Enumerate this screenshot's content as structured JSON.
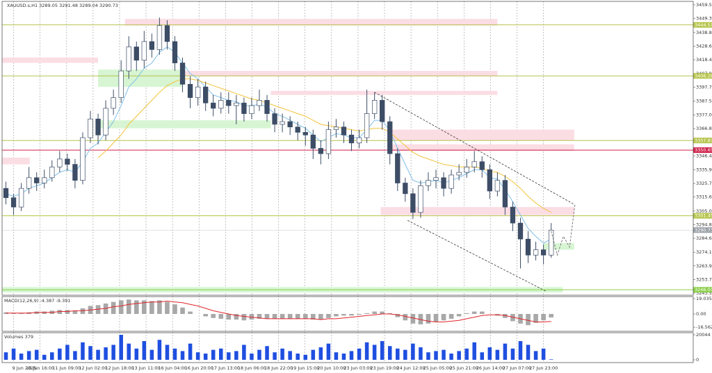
{
  "chart_data": {
    "type": "candlestick",
    "title": "XAUUSD.s,H1  3289.05 3291.48 3289.04 3290.73",
    "xlim": [
      0,
      90
    ],
    "xticks": [
      {
        "value": 1.5,
        "label": "9 Jun 2025"
      },
      {
        "value": 4.95,
        "label": "10 Jun 16:00"
      },
      {
        "value": 8.4,
        "label": "11 Jun 09:00"
      },
      {
        "value": 11.85,
        "label": "12 Jun 02:00"
      },
      {
        "value": 15.3,
        "label": "12 Jun 18:00"
      },
      {
        "value": 18.75,
        "label": "13 Jun 11:00"
      },
      {
        "value": 22.2,
        "label": "16 Jun 04:00"
      },
      {
        "value": 25.65,
        "label": "16 Jun 20:00"
      },
      {
        "value": 29.1,
        "label": "17 Jun 13:00"
      },
      {
        "value": 32.55,
        "label": "18 Jun 06:00"
      },
      {
        "value": 36,
        "label": "18 Jun 22:00"
      },
      {
        "value": 39.45,
        "label": "19 Jun 15:00"
      },
      {
        "value": 42.9,
        "label": "20 Jun 10:00"
      },
      {
        "value": 46.35,
        "label": "23 Jun 03:00"
      },
      {
        "value": 49.8,
        "label": "23 Jun 19:00"
      },
      {
        "value": 53.25,
        "label": "24 Jun 12:00"
      },
      {
        "value": 56.7,
        "label": "25 Jun 05:00"
      },
      {
        "value": 60.15,
        "label": "25 Jun 21:00"
      },
      {
        "value": 63.6,
        "label": "26 Jun 14:00"
      },
      {
        "value": 67.05,
        "label": "27 Jun 07:00"
      },
      {
        "value": 70.5,
        "label": "27 Jun 23:00"
      }
    ],
    "ylim": [
      3243.5,
      3459.5
    ],
    "yticks": [
      {
        "value": 3459.5,
        "label": "3459.50"
      },
      {
        "value": 3449.3,
        "label": "3449.30"
      },
      {
        "value": 3438.8,
        "label": "3438.80"
      },
      {
        "value": 3428.6,
        "label": "3428.60"
      },
      {
        "value": 3418.4,
        "label": "3418.40"
      },
      {
        "value": 3407.9,
        "label": "3407.90"
      },
      {
        "value": 3397.7,
        "label": "3397.70"
      },
      {
        "value": 3387.5,
        "label": "3387.50"
      },
      {
        "value": 3377,
        "label": "3377.00"
      },
      {
        "value": 3366.8,
        "label": "3366.80"
      },
      {
        "value": 3346.4,
        "label": "3346.40"
      },
      {
        "value": 3335.9,
        "label": "3335.90"
      },
      {
        "value": 3325.7,
        "label": "3325.70"
      },
      {
        "value": 3315.6,
        "label": "3315.60"
      },
      {
        "value": 3305,
        "label": "3305.00"
      },
      {
        "value": 3294.8,
        "label": "3294.80"
      },
      {
        "value": 3284.6,
        "label": "3284.60"
      },
      {
        "value": 3274.1,
        "label": "3274.10"
      },
      {
        "value": 3263.9,
        "label": "3263.90"
      },
      {
        "value": 3253.7,
        "label": "3253.70"
      },
      {
        "value": 3243.5,
        "label": "3243.50"
      }
    ],
    "grid": true,
    "up_color": "#ffffff",
    "down_color": "#3d4d66",
    "wick_color": "#3d4d66",
    "open": [
      3322,
      3315,
      3308,
      3322,
      3330,
      3326,
      3330,
      3338,
      3344,
      3340,
      3328,
      3360,
      3374,
      3362,
      3382,
      3390,
      3410,
      3428,
      3418,
      3432,
      3426,
      3444,
      3432,
      3416,
      3400,
      3390,
      3398,
      3386,
      3382,
      3388,
      3384,
      3386,
      3378,
      3384,
      3388,
      3378,
      3370,
      3372,
      3368,
      3364,
      3362,
      3352,
      3348,
      3366,
      3368,
      3362,
      3356,
      3360,
      3378,
      3388,
      3372,
      3348,
      3326,
      3318,
      3304,
      3324,
      3328,
      3330,
      3322,
      3332,
      3334,
      3338,
      3342,
      3336,
      3320,
      3328,
      3308,
      3296,
      3284,
      3272,
      3276,
      3272
    ],
    "high": [
      3327,
      3318,
      3326,
      3338,
      3334,
      3336,
      3343,
      3350,
      3348,
      3344,
      3364,
      3380,
      3378,
      3388,
      3396,
      3418,
      3436,
      3432,
      3440,
      3438,
      3450,
      3448,
      3436,
      3420,
      3406,
      3404,
      3402,
      3392,
      3394,
      3394,
      3392,
      3390,
      3390,
      3396,
      3392,
      3382,
      3378,
      3376,
      3372,
      3368,
      3366,
      3358,
      3372,
      3374,
      3372,
      3366,
      3366,
      3396,
      3394,
      3392,
      3376,
      3352,
      3330,
      3322,
      3328,
      3334,
      3336,
      3334,
      3336,
      3340,
      3344,
      3350,
      3346,
      3340,
      3334,
      3332,
      3312,
      3300,
      3290,
      3282,
      3280,
      3296
    ],
    "low": [
      3310,
      3302,
      3305,
      3318,
      3320,
      3322,
      3327,
      3334,
      3335,
      3322,
      3325,
      3356,
      3355,
      3358,
      3377,
      3386,
      3404,
      3410,
      3412,
      3420,
      3422,
      3426,
      3410,
      3394,
      3382,
      3384,
      3380,
      3376,
      3378,
      3378,
      3370,
      3372,
      3374,
      3380,
      3372,
      3364,
      3364,
      3362,
      3358,
      3354,
      3344,
      3340,
      3344,
      3360,
      3356,
      3350,
      3352,
      3356,
      3374,
      3366,
      3340,
      3320,
      3312,
      3299,
      3300,
      3320,
      3322,
      3316,
      3318,
      3328,
      3330,
      3334,
      3330,
      3314,
      3316,
      3302,
      3290,
      3262,
      3266,
      3268,
      3265,
      3270
    ],
    "close": [
      3315,
      3308,
      3322,
      3330,
      3326,
      3330,
      3338,
      3344,
      3340,
      3328,
      3360,
      3374,
      3362,
      3382,
      3390,
      3410,
      3428,
      3418,
      3432,
      3426,
      3444,
      3432,
      3416,
      3400,
      3390,
      3398,
      3386,
      3382,
      3388,
      3384,
      3386,
      3378,
      3384,
      3388,
      3378,
      3370,
      3372,
      3368,
      3364,
      3362,
      3352,
      3348,
      3366,
      3368,
      3362,
      3356,
      3360,
      3378,
      3388,
      3372,
      3348,
      3326,
      3318,
      3304,
      3324,
      3328,
      3330,
      3322,
      3332,
      3334,
      3338,
      3342,
      3336,
      3320,
      3328,
      3308,
      3296,
      3284,
      3272,
      3276,
      3272,
      3290.73
    ],
    "moving_averages": [
      {
        "color": "#7fbfe8",
        "values": [
          3318,
          3316,
          3318,
          3322,
          3324,
          3326,
          3330,
          3334,
          3336,
          3334,
          3342,
          3352,
          3356,
          3364,
          3372,
          3384,
          3398,
          3404,
          3412,
          3416,
          3424,
          3428,
          3424,
          3416,
          3408,
          3404,
          3398,
          3392,
          3390,
          3388,
          3387,
          3384,
          3384,
          3385,
          3383,
          3378,
          3376,
          3373,
          3370,
          3367,
          3362,
          3357,
          3360,
          3363,
          3362,
          3360,
          3360,
          3366,
          3373,
          3373,
          3365,
          3352,
          3340,
          3328,
          3326,
          3327,
          3328,
          3326,
          3328,
          3330,
          3333,
          3336,
          3336,
          3330,
          3329,
          3321,
          3312,
          3302,
          3292,
          3286,
          3281,
          3284
        ]
      },
      {
        "color": "#f2c23a",
        "values": [
          null,
          null,
          null,
          null,
          null,
          null,
          null,
          null,
          null,
          null,
          null,
          null,
          3345,
          3350,
          3356,
          3362,
          3370,
          3376,
          3382,
          3388,
          3394,
          3399,
          3402,
          3404,
          3404,
          3403,
          3401,
          3399,
          3397,
          3395,
          3393,
          3391,
          3389,
          3388,
          3386,
          3384,
          3382,
          3380,
          3378,
          3376,
          3373,
          3370,
          3369,
          3368,
          3367,
          3366,
          3365,
          3366,
          3367,
          3367,
          3364,
          3359,
          3354,
          3349,
          3346,
          3344,
          3342,
          3340,
          3339,
          3338,
          3338,
          3338,
          3337,
          3335,
          3334,
          3331,
          3327,
          3322,
          3316,
          3311,
          3307,
          3304
        ]
      }
    ],
    "zones": [
      {
        "top": 3449,
        "bottom": 3444,
        "start": 16,
        "end": 64.5,
        "color": "#fbdde4"
      },
      {
        "top": 3420,
        "bottom": 3416,
        "start": 0,
        "end": 12.5,
        "color": "#fbdde4"
      },
      {
        "top": 3411,
        "bottom": 3398,
        "start": 12.5,
        "end": 23.5,
        "color": "#d7f5d3"
      },
      {
        "top": 3410,
        "bottom": 3406,
        "start": 23.5,
        "end": 64.5,
        "color": "#fbdde4"
      },
      {
        "top": 3395,
        "bottom": 3392,
        "start": 35,
        "end": 64.5,
        "color": "#fbdde4"
      },
      {
        "top": 3373,
        "bottom": 3367,
        "start": 12.5,
        "end": 35,
        "color": "#d7f5d3"
      },
      {
        "top": 3366,
        "bottom": 3358,
        "start": 50.8,
        "end": 74.5,
        "color": "#fbdde4"
      },
      {
        "top": 3355,
        "bottom": 3350,
        "start": 50.8,
        "end": 74.5,
        "color": "#fbdde4"
      },
      {
        "top": 3345,
        "bottom": 3340,
        "start": 0,
        "end": 3.6,
        "color": "#fbdde4"
      },
      {
        "top": 3308,
        "bottom": 3302,
        "start": 49.3,
        "end": 74.5,
        "color": "#fbdde4"
      },
      {
        "top": 3281,
        "bottom": 3276,
        "start": 70.5,
        "end": 74.5,
        "color": "#d7f5d3"
      },
      {
        "top": 3248,
        "bottom": 3244,
        "start": 0,
        "end": 73,
        "color": "#d7f5d3"
      }
    ],
    "levels": [
      {
        "value": 3444.51,
        "color": "#b5c44a"
      },
      {
        "value": 3406.28,
        "color": "#b5c44a"
      },
      {
        "value": 3357.87,
        "color": "#b5c44a"
      },
      {
        "value": 3350.65,
        "color": "#d0204a"
      },
      {
        "value": 3301.45,
        "color": "#b5c44a"
      },
      {
        "value": 3246.01,
        "color": "#8ccf4a"
      }
    ],
    "current_price": 3290.73,
    "channel": [
      {
        "x": [
          48.5,
          74.5
        ],
        "y": [
          3394,
          3310
        ]
      },
      {
        "x": [
          52.8,
          70.8
        ],
        "y": [
          3298,
          3245
        ]
      }
    ],
    "projection": {
      "x": [
        71.5,
        72.3,
        73.1,
        73.9,
        74.6
      ],
      "y": [
        3290,
        3272,
        3286,
        3278,
        3310
      ]
    },
    "macd": {
      "label": "MACD(12,26,9) -4.387 -9.391",
      "ylim": [
        -20.8,
        20.8
      ],
      "yticks": [
        19.035,
        {
          "value": 0,
          "label": "0.00"
        },
        -16.562
      ],
      "histogram": [
        2,
        1,
        1,
        2,
        3,
        3,
        4,
        5,
        5,
        4,
        7,
        10,
        11,
        13,
        15,
        17,
        18,
        17,
        17,
        16,
        17,
        15,
        12,
        8,
        3,
        0,
        -3,
        -5,
        -6,
        -7,
        -7,
        -8,
        -7,
        -6,
        -6,
        -6,
        -6,
        -6,
        -6,
        -6,
        -7,
        -7,
        -5,
        -3,
        -2,
        -2,
        -1,
        1,
        3,
        3,
        1,
        -4,
        -8,
        -12,
        -13,
        -12,
        -10,
        -8,
        -6,
        -3,
        1,
        3,
        3,
        0,
        -2,
        -5,
        -9,
        -12,
        -14,
        -11,
        -8,
        -4.387
      ],
      "signal": [
        1,
        1,
        1,
        1,
        2,
        2,
        2,
        3,
        3,
        4,
        4,
        5,
        6,
        7,
        9,
        10,
        12,
        13,
        14,
        15,
        15,
        16,
        15,
        14,
        12,
        10,
        7,
        4,
        2,
        0,
        -2,
        -3,
        -4,
        -5,
        -6,
        -6,
        -6,
        -6,
        -6,
        -6,
        -6,
        -7,
        -6,
        -6,
        -5,
        -4,
        -3,
        -2,
        -1,
        0,
        0,
        -1,
        -3,
        -5,
        -7,
        -9,
        -10,
        -10,
        -9,
        -8,
        -6,
        -4,
        -2,
        -1,
        -1,
        -2,
        -4,
        -6,
        -8,
        -10,
        -10,
        -9.391
      ],
      "hist_color": "#a8a8a8",
      "signal_color": "#e0242a"
    },
    "volumes": {
      "label": "Volumes 379",
      "ylim": [
        0,
        20044
      ],
      "yticks": [
        20044,
        0
      ],
      "color": "#1f4fe0",
      "values": [
        6000,
        9000,
        5000,
        7000,
        8000,
        4000,
        6000,
        9000,
        12000,
        7000,
        14000,
        11000,
        8000,
        10000,
        12000,
        20044,
        13000,
        9000,
        15000,
        8000,
        16000,
        12000,
        9000,
        7000,
        13000,
        6000,
        5000,
        8000,
        9000,
        6000,
        7000,
        12000,
        5000,
        8000,
        11000,
        6000,
        9000,
        7000,
        5000,
        4000,
        8000,
        10000,
        13000,
        6000,
        5000,
        7000,
        9000,
        14000,
        12000,
        15000,
        11000,
        9000,
        8000,
        13000,
        10000,
        6000,
        7000,
        8000,
        5000,
        7000,
        9000,
        14000,
        6000,
        10000,
        8000,
        13000,
        9000,
        15000,
        12000,
        7000,
        9000,
        379
      ]
    }
  }
}
